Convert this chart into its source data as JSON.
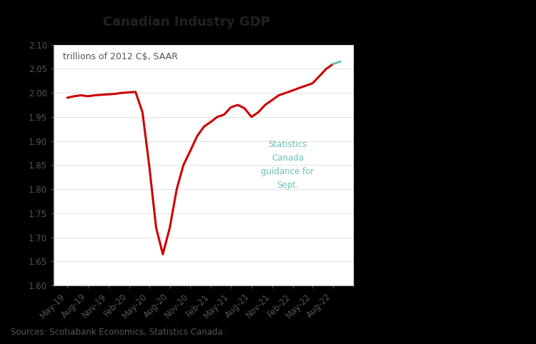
{
  "title": "Canadian Industry GDP",
  "subtitle": "trillions of 2012 C$, SAAR",
  "source": "Sources: Scotiabank Economics, Statistics Canada.",
  "annotation": "Statistics\nCanada\nguidance for\nSept.",
  "annotation_color": "#6dbfb8",
  "line_color_main": "#cc0000",
  "line_color_annotation": "#6dbfb8",
  "ylim": [
    1.6,
    2.1
  ],
  "yticks": [
    1.6,
    1.65,
    1.7,
    1.75,
    1.8,
    1.85,
    1.9,
    1.95,
    2.0,
    2.05,
    2.1
  ],
  "background_color": "#ffffff",
  "figure_background": "#000000",
  "x_labels": [
    "May-19",
    "Aug-19",
    "Nov-19",
    "Feb-20",
    "May-20",
    "Aug-20",
    "Nov-20",
    "Feb-21",
    "May-21",
    "Aug-21",
    "Nov-21",
    "Feb-22",
    "May-22",
    "Aug-22"
  ],
  "title_fontsize": 13,
  "subtitle_fontsize": 9,
  "tick_fontsize": 8.5,
  "source_fontsize": 8.5
}
